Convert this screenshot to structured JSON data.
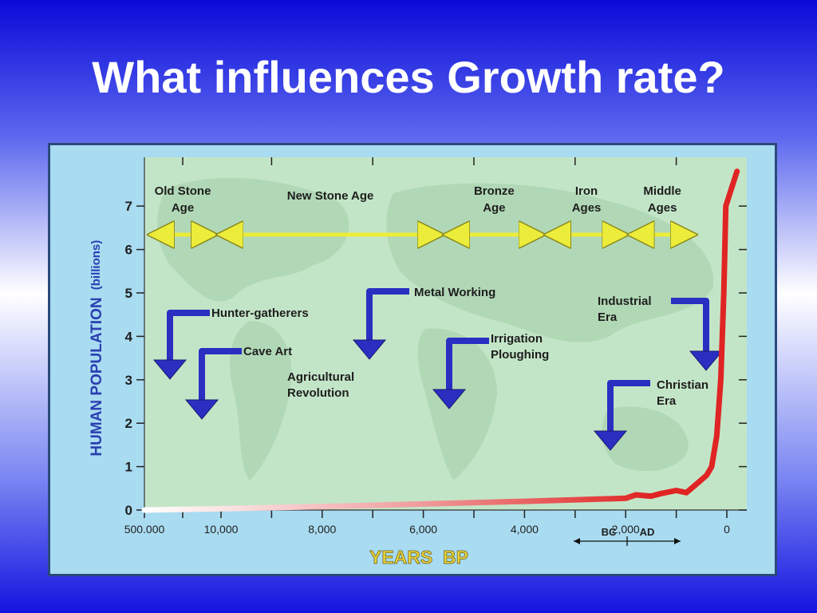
{
  "slide": {
    "title": "What influences Growth rate?"
  },
  "chart_data": {
    "type": "line",
    "ylabel": "HUMAN POPULATION",
    "ylabel_unit": "(billions)",
    "xlabel": "YEARS  BP",
    "ylim": [
      0,
      7.8
    ],
    "y_ticks": [
      "0",
      "1",
      "2",
      "3",
      "4",
      "5",
      "6",
      "7"
    ],
    "x_ticks": [
      "500.000",
      "10,000",
      "8,000",
      "6,000",
      "4,000",
      "2,000",
      "0"
    ],
    "x_tick_values": [
      12000,
      10000,
      8000,
      6000,
      4000,
      2000,
      0
    ],
    "series": [
      {
        "values": [
          {
            "x": 12000,
            "y": 0.0
          },
          {
            "x": 10000,
            "y": 0.03
          },
          {
            "x": 8000,
            "y": 0.08
          },
          {
            "x": 6000,
            "y": 0.14
          },
          {
            "x": 4000,
            "y": 0.2
          },
          {
            "x": 2000,
            "y": 0.27
          },
          {
            "x": 1800,
            "y": 0.35
          },
          {
            "x": 1500,
            "y": 0.32
          },
          {
            "x": 1300,
            "y": 0.38
          },
          {
            "x": 1000,
            "y": 0.45
          },
          {
            "x": 800,
            "y": 0.4
          },
          {
            "x": 600,
            "y": 0.6
          },
          {
            "x": 400,
            "y": 0.8
          },
          {
            "x": 300,
            "y": 1.0
          },
          {
            "x": 200,
            "y": 1.7
          },
          {
            "x": 120,
            "y": 3.0
          },
          {
            "x": 60,
            "y": 5.0
          },
          {
            "x": 20,
            "y": 7.0
          },
          {
            "x": -200,
            "y": 7.8
          }
        ]
      }
    ],
    "eras": [
      {
        "label_lines": [
          "Old Stone",
          "Age"
        ],
        "from": 11900,
        "to": 10100
      },
      {
        "label_lines": [
          "New Stone Age"
        ],
        "from": 10100,
        "to": 5600
      },
      {
        "label_lines": [
          "Bronze",
          "Age"
        ],
        "from": 5600,
        "to": 3600
      },
      {
        "label_lines": [
          "Iron",
          "Ages"
        ],
        "from": 3600,
        "to": 1950
      },
      {
        "label_lines": [
          "Middle",
          "Ages"
        ],
        "from": 1950,
        "to": 600
      }
    ],
    "annotations": [
      {
        "lines": [
          "Hunter-gatherers"
        ]
      },
      {
        "lines": [
          "Cave Art"
        ]
      },
      {
        "lines": [
          "Agricultural",
          "Revolution"
        ]
      },
      {
        "lines": [
          "Metal Working"
        ]
      },
      {
        "lines": [
          "Irrigation",
          "Ploughing"
        ]
      },
      {
        "lines": [
          "Industrial",
          "Era"
        ]
      },
      {
        "lines": [
          "Christian",
          "Era"
        ]
      }
    ],
    "bc_label": "BC",
    "ad_label": "AD",
    "colors": {
      "line": "#e02424",
      "era_arrow": "#ecec3a",
      "pointer_arrow": "#2a2fc2",
      "plot_bg": "#c3e5c7",
      "axis_label": "#2a3fb0",
      "xlabel": "#e8d23a"
    }
  }
}
